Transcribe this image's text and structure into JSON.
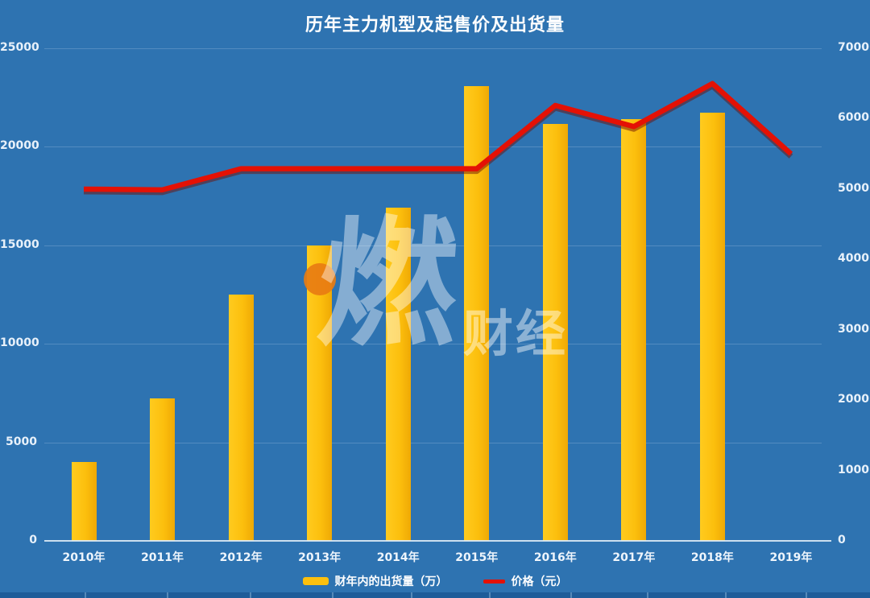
{
  "title": "历年主力机型及起售价及出货量",
  "watermark": {
    "dot": "orange-dot",
    "main": "燃",
    "sub": "财经"
  },
  "legend": [
    {
      "label": "财年内的出货量（万）",
      "swatch": "bar",
      "color": "#fcc00e"
    },
    {
      "label": "价格（元）",
      "swatch": "line",
      "color": "#e41105"
    }
  ],
  "colors": {
    "background": "#2e73b1",
    "bar": "#fcbf0d",
    "line": "#e41105",
    "line_shadow": "#7c130a",
    "axis_text": "#e8f1fa",
    "gridline": "rgba(214,233,248,0.22)",
    "bottom_strip": "#1e5c99",
    "watermark_orange": "#e87c12"
  },
  "chart_data": {
    "type": "bar",
    "title": "历年主力机型及起售价及出货量",
    "categories": [
      "2010年",
      "2011年",
      "2012年",
      "2013年",
      "2014年",
      "2015年",
      "2016年",
      "2017年",
      "2018年",
      "2019年"
    ],
    "series": [
      {
        "name": "财年内的出货量（万）",
        "type": "bar",
        "axis": "left",
        "values": [
          4000,
          7230,
          12500,
          15000,
          16900,
          23100,
          21150,
          21400,
          21730,
          null
        ]
      },
      {
        "name": "价格（元）",
        "type": "line",
        "axis": "right",
        "values": [
          4999,
          4988,
          5288,
          5288,
          5288,
          5288,
          6188,
          5888,
          6499,
          5499
        ]
      }
    ],
    "left_axis": {
      "label": "",
      "ticks": [
        25000,
        20000,
        15000,
        10000,
        5000,
        0
      ],
      "range": [
        0,
        25000
      ]
    },
    "right_axis": {
      "label": "",
      "ticks": [
        7000,
        6000,
        5000,
        4000,
        3000,
        2000,
        1000,
        0
      ],
      "range": [
        0,
        7000
      ]
    },
    "grid": "horizontal gridlines at left-axis ticks",
    "legend_position": "bottom-center"
  }
}
